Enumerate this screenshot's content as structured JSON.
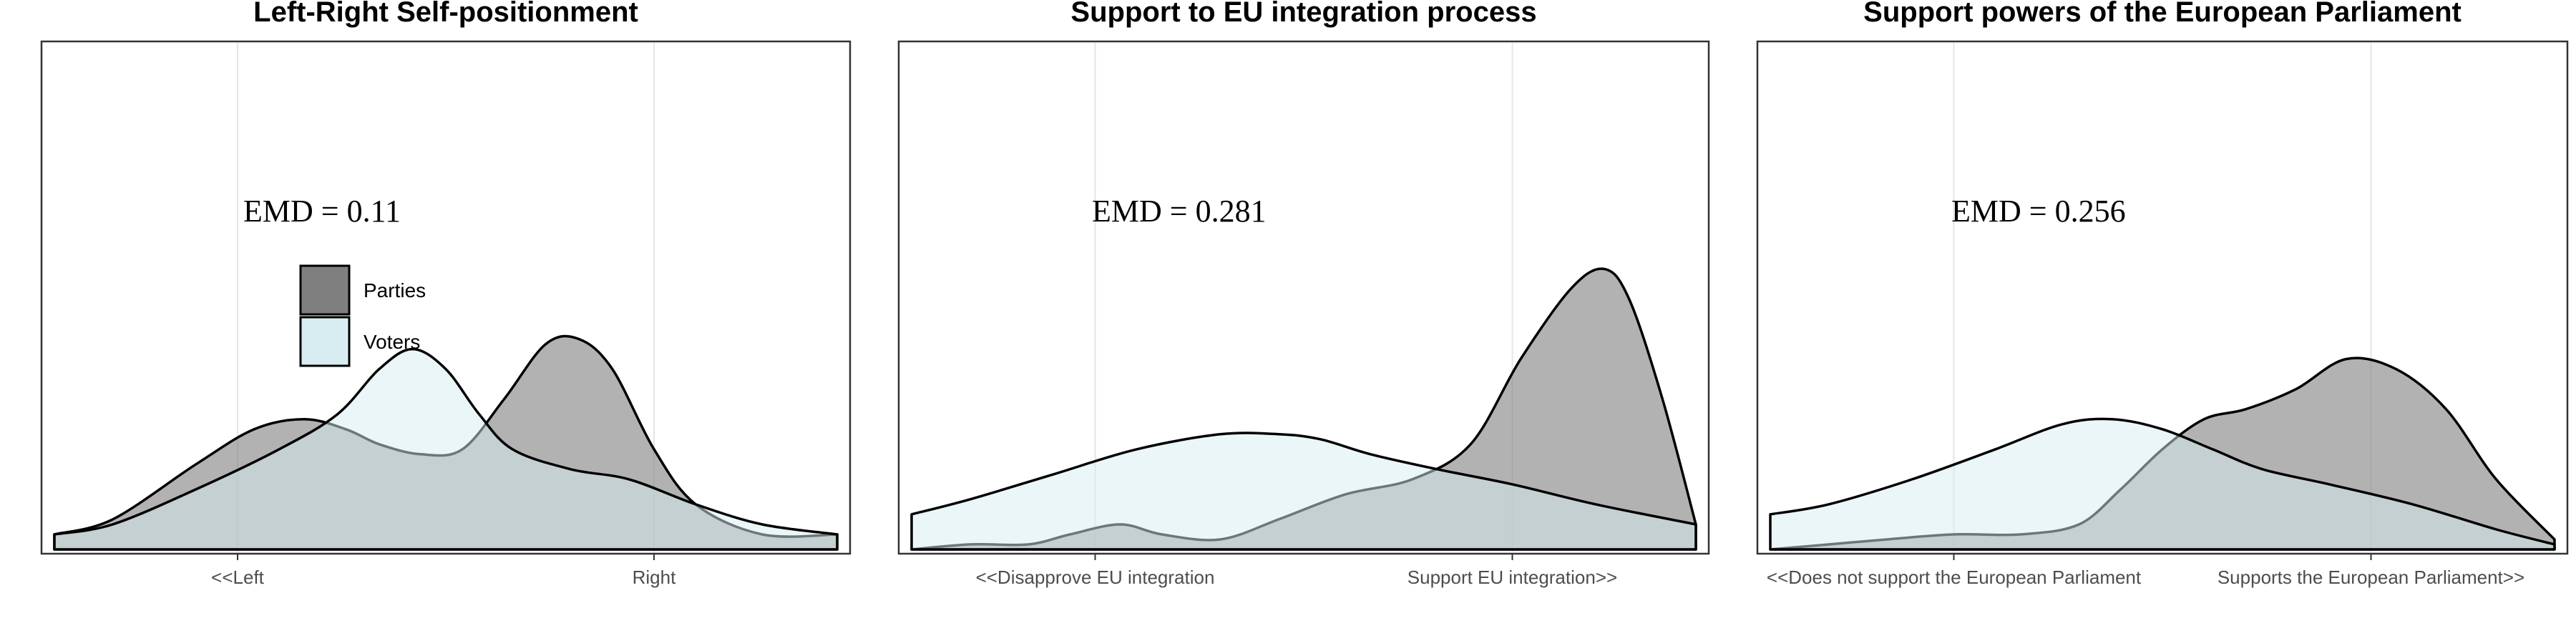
{
  "chart_data": [
    {
      "type": "area",
      "title": "Left-Right Self-positionment",
      "xlabel": "",
      "ylabel": "",
      "x_ticks": [
        {
          "label": "<<Left",
          "x": 0.25
        },
        {
          "label": "Right",
          "x": 0.75
        }
      ],
      "xlim": [
        0.03,
        0.97
      ],
      "ylim": [
        0,
        1.0
      ],
      "annotation": "EMD = 0.11",
      "legend": {
        "position": "upper-left",
        "entries": [
          {
            "name": "Parties",
            "color": "#7f7f7f"
          },
          {
            "name": "Voters",
            "color": "#d8edf1"
          }
        ]
      },
      "series": [
        {
          "name": "Parties",
          "color": "#7f7f7f",
          "x": [
            0.03,
            0.1,
            0.2,
            0.27,
            0.33,
            0.38,
            0.42,
            0.47,
            0.52,
            0.57,
            0.62,
            0.66,
            0.7,
            0.75,
            0.8,
            0.88,
            0.97
          ],
          "y": [
            0.03,
            0.06,
            0.17,
            0.24,
            0.26,
            0.24,
            0.21,
            0.19,
            0.2,
            0.3,
            0.41,
            0.42,
            0.36,
            0.2,
            0.09,
            0.03,
            0.03
          ]
        },
        {
          "name": "Voters",
          "color": "#d8edf1",
          "x": [
            0.03,
            0.1,
            0.2,
            0.3,
            0.37,
            0.42,
            0.46,
            0.5,
            0.54,
            0.58,
            0.65,
            0.72,
            0.8,
            0.88,
            0.97
          ],
          "y": [
            0.03,
            0.05,
            0.12,
            0.2,
            0.27,
            0.36,
            0.4,
            0.36,
            0.27,
            0.2,
            0.16,
            0.14,
            0.09,
            0.05,
            0.03
          ]
        }
      ]
    },
    {
      "type": "area",
      "title": "Support to EU integration process",
      "xlabel": "",
      "ylabel": "",
      "x_ticks": [
        {
          "label": "<<Disapprove EU integration",
          "x": 0.25
        },
        {
          "label": "Support EU integration>>",
          "x": 0.75
        }
      ],
      "xlim": [
        0.03,
        0.97
      ],
      "ylim": [
        0,
        1.0
      ],
      "annotation": "EMD = 0.281",
      "series": [
        {
          "name": "Parties",
          "color": "#7f7f7f",
          "x": [
            0.03,
            0.1,
            0.17,
            0.22,
            0.28,
            0.33,
            0.4,
            0.47,
            0.55,
            0.63,
            0.7,
            0.76,
            0.82,
            0.86,
            0.89,
            0.93,
            0.97
          ],
          "y": [
            0.0,
            0.01,
            0.01,
            0.03,
            0.05,
            0.03,
            0.02,
            0.06,
            0.11,
            0.14,
            0.21,
            0.38,
            0.52,
            0.56,
            0.5,
            0.3,
            0.05
          ]
        },
        {
          "name": "Voters",
          "color": "#d8edf1",
          "x": [
            0.03,
            0.1,
            0.2,
            0.3,
            0.4,
            0.47,
            0.52,
            0.58,
            0.66,
            0.75,
            0.85,
            0.97
          ],
          "y": [
            0.07,
            0.1,
            0.15,
            0.2,
            0.23,
            0.23,
            0.22,
            0.19,
            0.16,
            0.13,
            0.09,
            0.05
          ]
        }
      ]
    },
    {
      "type": "area",
      "title": "Support powers of the European Parliament",
      "xlabel": "",
      "ylabel": "",
      "x_ticks": [
        {
          "label": "<<Does not support the European Parliament",
          "x": 0.25
        },
        {
          "label": "Supports the European Parliament>>",
          "x": 0.75
        }
      ],
      "xlim": [
        0.03,
        0.97
      ],
      "ylim": [
        0,
        1.0
      ],
      "annotation": "EMD = 0.256",
      "series": [
        {
          "name": "Parties",
          "color": "#7f7f7f",
          "x": [
            0.03,
            0.1,
            0.17,
            0.25,
            0.33,
            0.4,
            0.45,
            0.5,
            0.55,
            0.6,
            0.66,
            0.72,
            0.78,
            0.84,
            0.9,
            0.97
          ],
          "y": [
            0.0,
            0.01,
            0.02,
            0.03,
            0.03,
            0.05,
            0.12,
            0.2,
            0.26,
            0.28,
            0.32,
            0.38,
            0.36,
            0.28,
            0.14,
            0.02
          ]
        },
        {
          "name": "Voters",
          "color": "#d8edf1",
          "x": [
            0.03,
            0.1,
            0.2,
            0.3,
            0.38,
            0.44,
            0.5,
            0.56,
            0.62,
            0.7,
            0.8,
            0.9,
            0.97
          ],
          "y": [
            0.07,
            0.09,
            0.14,
            0.2,
            0.25,
            0.26,
            0.24,
            0.2,
            0.16,
            0.13,
            0.09,
            0.04,
            0.01
          ]
        }
      ]
    }
  ]
}
